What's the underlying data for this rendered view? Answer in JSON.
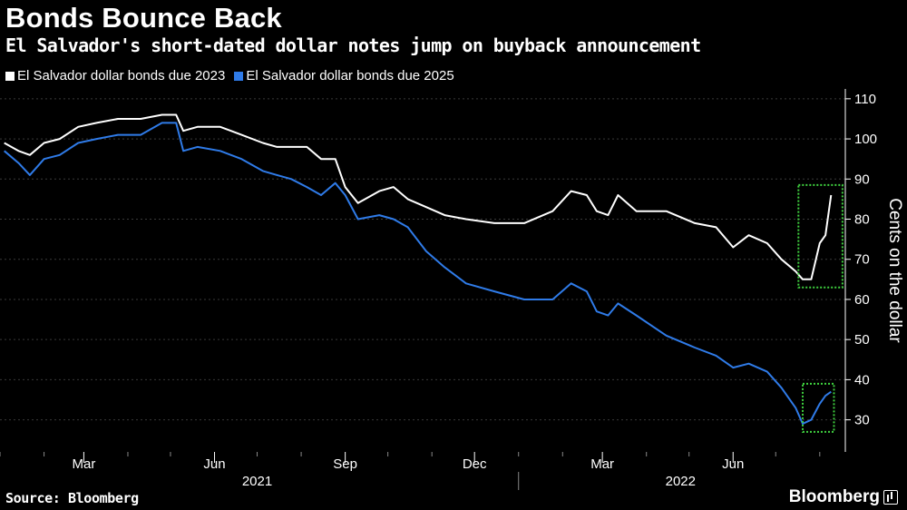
{
  "title": "Bonds Bounce Back",
  "subtitle": "El Salvador's short-dated dollar notes jump on buyback announcement",
  "source": "Source: Bloomberg",
  "brand": "Bloomberg",
  "colors": {
    "background": "#000000",
    "series_2023": "#ffffff",
    "series_2025": "#2f7be8",
    "highlight_box": "#3fd13f",
    "grid": "#3a3a3a"
  },
  "chart_data": {
    "type": "line",
    "xlabel": "",
    "ylabel": "Cents on the dollar",
    "ylim": [
      22,
      112
    ],
    "yticks": [
      30,
      40,
      50,
      60,
      70,
      80,
      90,
      100,
      110
    ],
    "y_axis_side": "right",
    "grid": "horizontal dotted",
    "legend_position": "top-left",
    "x_month_ticks": [
      "Mar",
      "Jun",
      "Sep",
      "Dec",
      "Mar",
      "Jun"
    ],
    "x_year_labels": [
      "2021",
      "2022"
    ],
    "series": [
      {
        "name": "El Salvador dollar bonds due 2023",
        "points": [
          [
            "2021-01-04",
            99
          ],
          [
            "2021-01-14",
            97
          ],
          [
            "2021-01-22",
            96
          ],
          [
            "2021-02-01",
            99
          ],
          [
            "2021-02-12",
            100
          ],
          [
            "2021-02-25",
            103
          ],
          [
            "2021-03-10",
            104
          ],
          [
            "2021-03-25",
            105
          ],
          [
            "2021-04-10",
            105
          ],
          [
            "2021-04-25",
            106
          ],
          [
            "2021-05-05",
            106
          ],
          [
            "2021-05-10",
            102
          ],
          [
            "2021-05-20",
            103
          ],
          [
            "2021-06-05",
            103
          ],
          [
            "2021-06-20",
            101
          ],
          [
            "2021-07-05",
            99
          ],
          [
            "2021-07-15",
            98
          ],
          [
            "2021-07-25",
            98
          ],
          [
            "2021-08-05",
            98
          ],
          [
            "2021-08-15",
            95
          ],
          [
            "2021-08-25",
            95
          ],
          [
            "2021-09-01",
            88
          ],
          [
            "2021-09-10",
            84
          ],
          [
            "2021-09-25",
            87
          ],
          [
            "2021-10-05",
            88
          ],
          [
            "2021-10-15",
            85
          ],
          [
            "2021-10-28",
            83
          ],
          [
            "2021-11-10",
            81
          ],
          [
            "2021-11-25",
            80
          ],
          [
            "2021-12-15",
            79
          ],
          [
            "2022-01-05",
            79
          ],
          [
            "2022-01-25",
            82
          ],
          [
            "2022-02-07",
            87
          ],
          [
            "2022-02-18",
            86
          ],
          [
            "2022-02-25",
            82
          ],
          [
            "2022-03-05",
            81
          ],
          [
            "2022-03-12",
            86
          ],
          [
            "2022-03-25",
            82
          ],
          [
            "2022-04-15",
            82
          ],
          [
            "2022-05-05",
            79
          ],
          [
            "2022-05-20",
            78
          ],
          [
            "2022-06-01",
            73
          ],
          [
            "2022-06-12",
            76
          ],
          [
            "2022-06-25",
            74
          ],
          [
            "2022-07-05",
            70
          ],
          [
            "2022-07-15",
            67
          ],
          [
            "2022-07-20",
            65
          ],
          [
            "2022-07-26",
            65
          ],
          [
            "2022-08-01",
            74
          ],
          [
            "2022-08-05",
            76
          ],
          [
            "2022-08-09",
            86
          ]
        ]
      },
      {
        "name": "El Salvador dollar bonds due 2025",
        "points": [
          [
            "2021-01-04",
            97
          ],
          [
            "2021-01-14",
            94
          ],
          [
            "2021-01-22",
            91
          ],
          [
            "2021-02-01",
            95
          ],
          [
            "2021-02-12",
            96
          ],
          [
            "2021-02-25",
            99
          ],
          [
            "2021-03-10",
            100
          ],
          [
            "2021-03-25",
            101
          ],
          [
            "2021-04-10",
            101
          ],
          [
            "2021-04-25",
            104
          ],
          [
            "2021-05-05",
            104
          ],
          [
            "2021-05-10",
            97
          ],
          [
            "2021-05-20",
            98
          ],
          [
            "2021-06-05",
            97
          ],
          [
            "2021-06-20",
            95
          ],
          [
            "2021-07-05",
            92
          ],
          [
            "2021-07-15",
            91
          ],
          [
            "2021-07-25",
            90
          ],
          [
            "2021-08-05",
            88
          ],
          [
            "2021-08-15",
            86
          ],
          [
            "2021-08-25",
            89
          ],
          [
            "2021-09-01",
            86
          ],
          [
            "2021-09-10",
            80
          ],
          [
            "2021-09-25",
            81
          ],
          [
            "2021-10-05",
            80
          ],
          [
            "2021-10-15",
            78
          ],
          [
            "2021-10-28",
            72
          ],
          [
            "2021-11-10",
            68
          ],
          [
            "2021-11-25",
            64
          ],
          [
            "2021-12-15",
            62
          ],
          [
            "2022-01-05",
            60
          ],
          [
            "2022-01-25",
            60
          ],
          [
            "2022-02-07",
            64
          ],
          [
            "2022-02-18",
            62
          ],
          [
            "2022-02-25",
            57
          ],
          [
            "2022-03-05",
            56
          ],
          [
            "2022-03-12",
            59
          ],
          [
            "2022-03-25",
            56
          ],
          [
            "2022-04-15",
            51
          ],
          [
            "2022-05-05",
            48
          ],
          [
            "2022-05-20",
            46
          ],
          [
            "2022-06-01",
            43
          ],
          [
            "2022-06-12",
            44
          ],
          [
            "2022-06-25",
            42
          ],
          [
            "2022-07-05",
            38
          ],
          [
            "2022-07-15",
            33
          ],
          [
            "2022-07-20",
            29
          ],
          [
            "2022-07-26",
            30
          ],
          [
            "2022-08-01",
            34
          ],
          [
            "2022-08-05",
            36
          ],
          [
            "2022-08-09",
            37
          ]
        ]
      }
    ]
  }
}
